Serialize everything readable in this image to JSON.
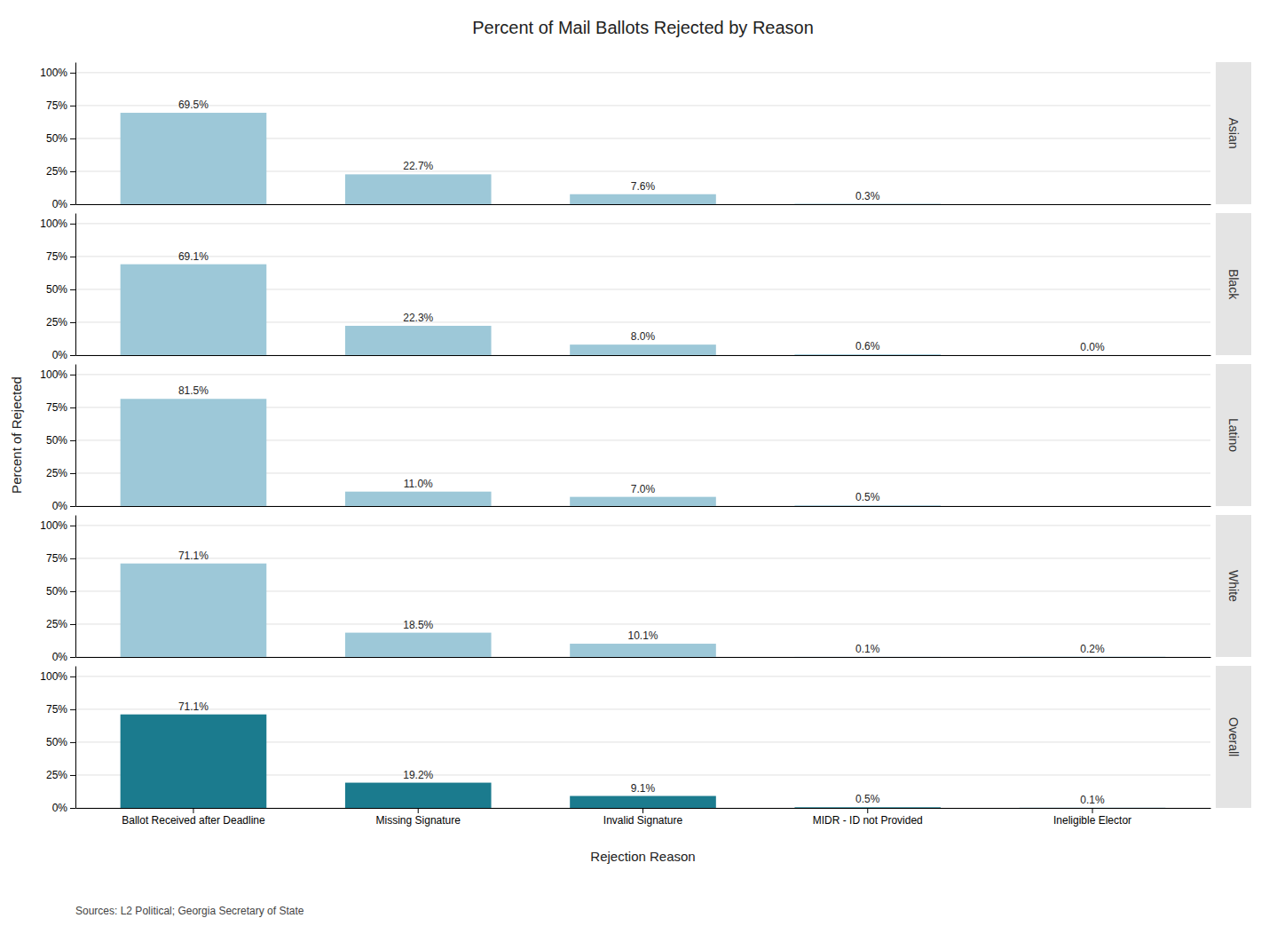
{
  "chart_data": {
    "type": "bar",
    "title": "Percent of Mail Ballots Rejected by Reason",
    "x_label": "Rejection Reason",
    "y_label": "Percent of Rejected",
    "annotations": [
      "Sources: L2 Political; Georgia Secretary of State"
    ],
    "categories": [
      "Ballot Received after Deadline",
      "Missing Signature",
      "Invalid Signature",
      "MIDR - ID not Provided",
      "Ineligible Elector"
    ],
    "series": [
      {
        "name": "Asian",
        "color": "#9DC8D8",
        "values": [
          69.5,
          22.7,
          7.6,
          0.3,
          null
        ],
        "value_labels": [
          "69.5%",
          "22.7%",
          "7.6%",
          "0.3%",
          null
        ]
      },
      {
        "name": "Black",
        "color": "#9DC8D8",
        "values": [
          69.1,
          22.3,
          8.0,
          0.6,
          0.0
        ],
        "value_labels": [
          "69.1%",
          "22.3%",
          "8.0%",
          "0.6%",
          "0.0%"
        ]
      },
      {
        "name": "Latino",
        "color": "#9DC8D8",
        "values": [
          81.5,
          11.0,
          7.0,
          0.5,
          null
        ],
        "value_labels": [
          "81.5%",
          "11.0%",
          "7.0%",
          "0.5%",
          null
        ]
      },
      {
        "name": "White",
        "color": "#9DC8D8",
        "values": [
          71.1,
          18.5,
          10.1,
          0.1,
          0.2
        ],
        "value_labels": [
          "71.1%",
          "18.5%",
          "10.1%",
          "0.1%",
          "0.2%"
        ]
      },
      {
        "name": "Overall",
        "color": "#1B7B8E",
        "values": [
          71.1,
          19.2,
          9.1,
          0.5,
          0.1
        ],
        "value_labels": [
          "71.1%",
          "19.2%",
          "9.1%",
          "0.5%",
          "0.1%"
        ]
      }
    ],
    "ylim": [
      0,
      108
    ],
    "yticks": [
      {
        "value": 0,
        "label": "0%"
      },
      {
        "value": 25,
        "label": "25%"
      },
      {
        "value": 50,
        "label": "50%"
      },
      {
        "value": 75,
        "label": "75%"
      },
      {
        "value": 100,
        "label": "100%"
      }
    ],
    "grid": true,
    "data_labels": true
  }
}
